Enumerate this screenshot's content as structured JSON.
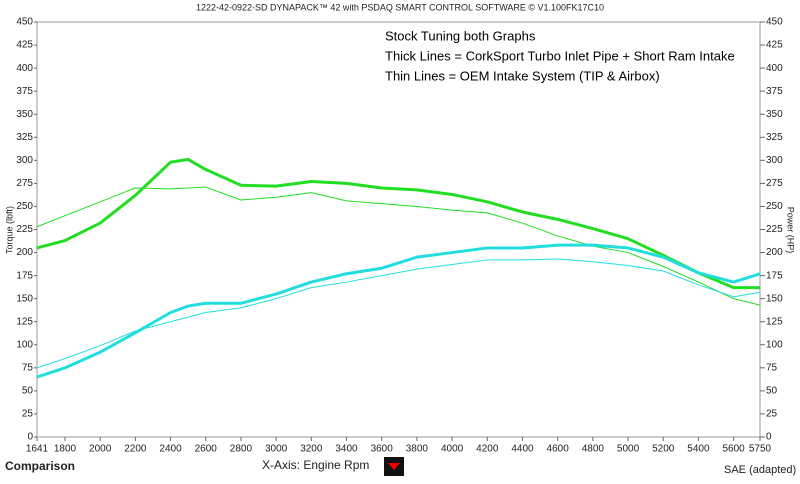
{
  "chart_data": {
    "type": "line",
    "title": "1222-42-0922-SD DYNAPACK™ 42 with PSDAQ SMART CONTROL SOFTWARE © V1.100FK17C10",
    "annotations": [
      "Stock Tuning both Graphs",
      "Thick Lines = CorkSport Turbo Inlet Pipe + Short Ram Intake",
      "Thin Lines = OEM Intake System (TIP & Airbox)"
    ],
    "y_label": "Torque (lbft)",
    "y2_label": "Power (HP)",
    "x_label": "X-Axis: Engine Rpm",
    "footer_left": "Comparison",
    "footer_right": "SAE (adapted)",
    "x": [
      1641,
      1800,
      2000,
      2200,
      2400,
      2500,
      2600,
      2800,
      3000,
      3200,
      3400,
      3600,
      3800,
      4000,
      4200,
      4400,
      4600,
      4800,
      5000,
      5200,
      5400,
      5600,
      5750
    ],
    "xlim": [
      1641,
      5750
    ],
    "xticks": [
      1641,
      1800,
      2000,
      2200,
      2400,
      2600,
      2800,
      3000,
      3200,
      3400,
      3600,
      3800,
      4000,
      4200,
      4400,
      4600,
      4800,
      5000,
      5200,
      5400,
      5600,
      5750
    ],
    "ylim": [
      0,
      450
    ],
    "yticks": [
      0,
      25,
      50,
      75,
      100,
      125,
      150,
      175,
      200,
      225,
      250,
      275,
      300,
      325,
      350,
      375,
      400,
      425,
      450
    ],
    "y2lim": [
      0,
      450
    ],
    "y2ticks": [
      0,
      25,
      50,
      75,
      100,
      125,
      150,
      175,
      200,
      225,
      250,
      275,
      300,
      325,
      350,
      375,
      400,
      425,
      450
    ],
    "series": [
      {
        "color": "#22dd22",
        "width": 3,
        "axis": "y",
        "values": [
          205,
          213,
          232,
          262,
          298,
          301,
          290,
          273,
          272,
          277,
          275,
          270,
          268,
          263,
          255,
          244,
          236,
          226,
          215,
          197,
          178,
          162,
          162
        ]
      },
      {
        "color": "#22dd22",
        "width": 1,
        "axis": "y",
        "values": [
          228,
          240,
          255,
          270,
          269,
          270,
          271,
          257,
          260,
          265,
          256,
          253,
          250,
          246,
          243,
          232,
          218,
          207,
          200,
          185,
          168,
          150,
          143
        ]
      },
      {
        "color": "#22dddd",
        "width": 3,
        "axis": "y2",
        "values": [
          65,
          75,
          92,
          113,
          135,
          142,
          145,
          145,
          155,
          168,
          177,
          183,
          195,
          200,
          205,
          205,
          208,
          208,
          205,
          195,
          178,
          168,
          177
        ]
      },
      {
        "color": "#22dddd",
        "width": 1,
        "axis": "y2",
        "values": [
          75,
          85,
          99,
          115,
          125,
          130,
          135,
          140,
          150,
          162,
          168,
          175,
          182,
          187,
          192,
          192,
          193,
          190,
          186,
          180,
          165,
          152,
          157
        ]
      }
    ]
  }
}
